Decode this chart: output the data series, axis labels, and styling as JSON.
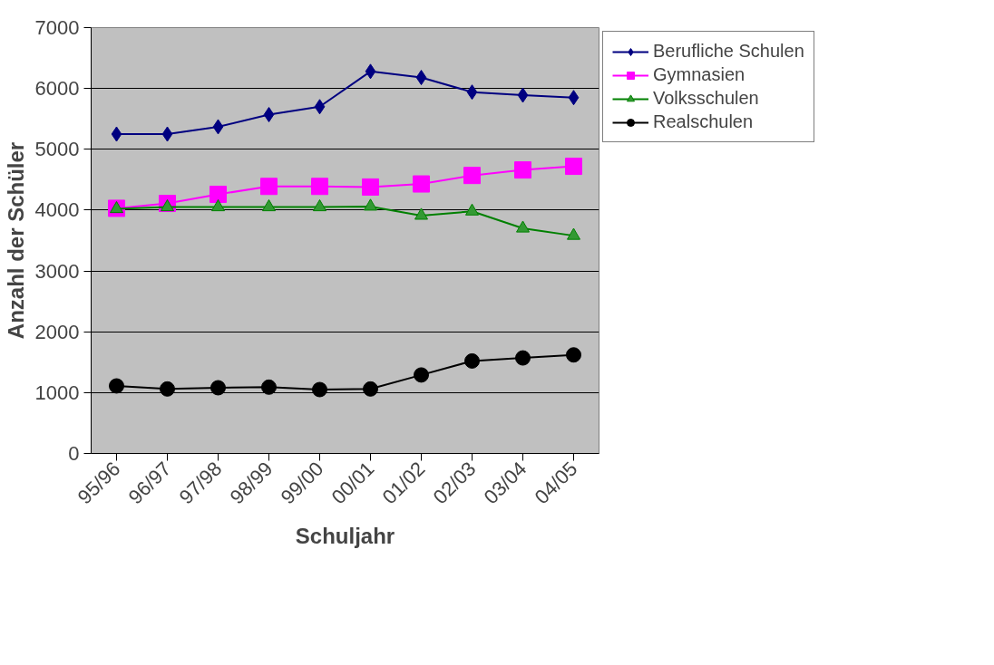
{
  "chart_data": {
    "type": "line",
    "xlabel": "Schuljahr",
    "ylabel": "Anzahl der Schüler",
    "categories": [
      "95/96",
      "96/97",
      "97/98",
      "98/99",
      "99/00",
      "00/01",
      "01/02",
      "02/03",
      "03/04",
      "04/05"
    ],
    "ylim": [
      0,
      7000
    ],
    "yticks": [
      0,
      1000,
      2000,
      3000,
      4000,
      5000,
      6000,
      7000
    ],
    "grid": "y",
    "legend": "top right",
    "series": [
      {
        "name": "Berufliche Schulen",
        "color": "#000080",
        "marker": "diamond",
        "values": [
          5250,
          5250,
          5370,
          5570,
          5700,
          6280,
          6180,
          5940,
          5890,
          5850
        ]
      },
      {
        "name": "Gymnasien",
        "color": "#ff00ff",
        "marker": "square",
        "values": [
          4030,
          4110,
          4260,
          4390,
          4390,
          4380,
          4430,
          4570,
          4660,
          4720
        ]
      },
      {
        "name": "Volksschulen",
        "color": "#008000",
        "marker": "triangle",
        "values": [
          4020,
          4050,
          4050,
          4050,
          4050,
          4060,
          3910,
          3980,
          3700,
          3580
        ]
      },
      {
        "name": "Realschulen",
        "color": "#000000",
        "marker": "circle",
        "values": [
          1110,
          1060,
          1080,
          1090,
          1050,
          1060,
          1290,
          1520,
          1570,
          1620
        ]
      }
    ]
  }
}
